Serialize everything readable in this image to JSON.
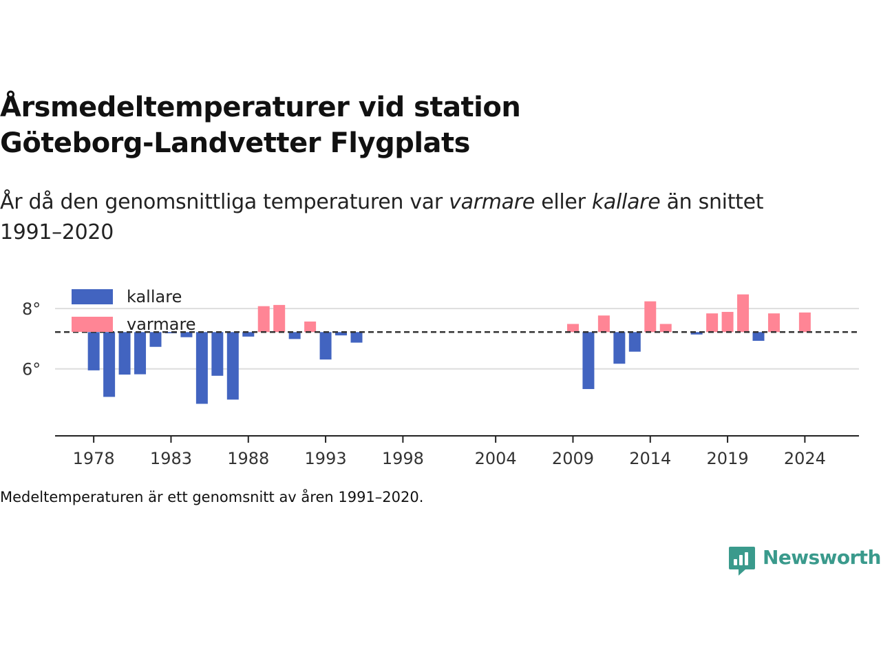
{
  "title_line1": "Årsmedeltemperaturer vid station",
  "title_line2": "Göteborg-Landvetter Flygplats",
  "subtitle": {
    "part1": "År då den genomsnittliga temperaturen var ",
    "em1": "varmare",
    "part2": " eller ",
    "em2": "kallare",
    "part3": " än snittet",
    "line2": "1991–2020"
  },
  "footnote": "Medeltemperaturen är ett genomsnitt av åren 1991–2020.",
  "logo_text": "Newsworthy",
  "colors": {
    "colder": "#4264c0",
    "warmer": "#ff8595",
    "grid": "#dddddd",
    "axis": "#222222",
    "reference_line": "#333333",
    "brand": "#3a9a8c"
  },
  "chart_data": {
    "type": "bar",
    "baseline": 7.22,
    "ylim": [
      3.8,
      9.1
    ],
    "yticks": [
      {
        "value": 6,
        "label": "6°"
      },
      {
        "value": 8,
        "label": "8°"
      }
    ],
    "xlim": [
      1975.5,
      2027.5
    ],
    "xticks": [
      {
        "value": 1978,
        "label": "1978"
      },
      {
        "value": 1983,
        "label": "1983"
      },
      {
        "value": 1988,
        "label": "1988"
      },
      {
        "value": 1993,
        "label": "1993"
      },
      {
        "value": 1998,
        "label": "1998"
      },
      {
        "value": 2004,
        "label": "2004"
      },
      {
        "value": 2009,
        "label": "2009"
      },
      {
        "value": 2014,
        "label": "2014"
      },
      {
        "value": 2019,
        "label": "2019"
      },
      {
        "value": 2024,
        "label": "2024"
      }
    ],
    "legend": {
      "position": "top-left",
      "entries": [
        {
          "label": "kallare",
          "series": "colder"
        },
        {
          "label": "varmare",
          "series": "warmer"
        }
      ]
    },
    "x": [
      1978,
      1979,
      1980,
      1981,
      1982,
      1983,
      1984,
      1985,
      1986,
      1987,
      1988,
      1989,
      1990,
      1991,
      1992,
      1993,
      1994,
      1995,
      2009,
      2010,
      2011,
      2012,
      2013,
      2014,
      2015,
      2017,
      2018,
      2019,
      2020,
      2021,
      2022,
      2024
    ],
    "values": [
      5.95,
      5.07,
      5.81,
      5.82,
      6.73,
      7.18,
      7.05,
      4.84,
      5.77,
      4.98,
      7.07,
      8.08,
      8.12,
      6.99,
      7.57,
      6.31,
      7.11,
      6.87,
      7.49,
      5.33,
      7.77,
      6.17,
      6.57,
      8.24,
      7.49,
      7.14,
      7.84,
      7.89,
      8.47,
      6.93,
      7.84,
      7.87
    ]
  }
}
